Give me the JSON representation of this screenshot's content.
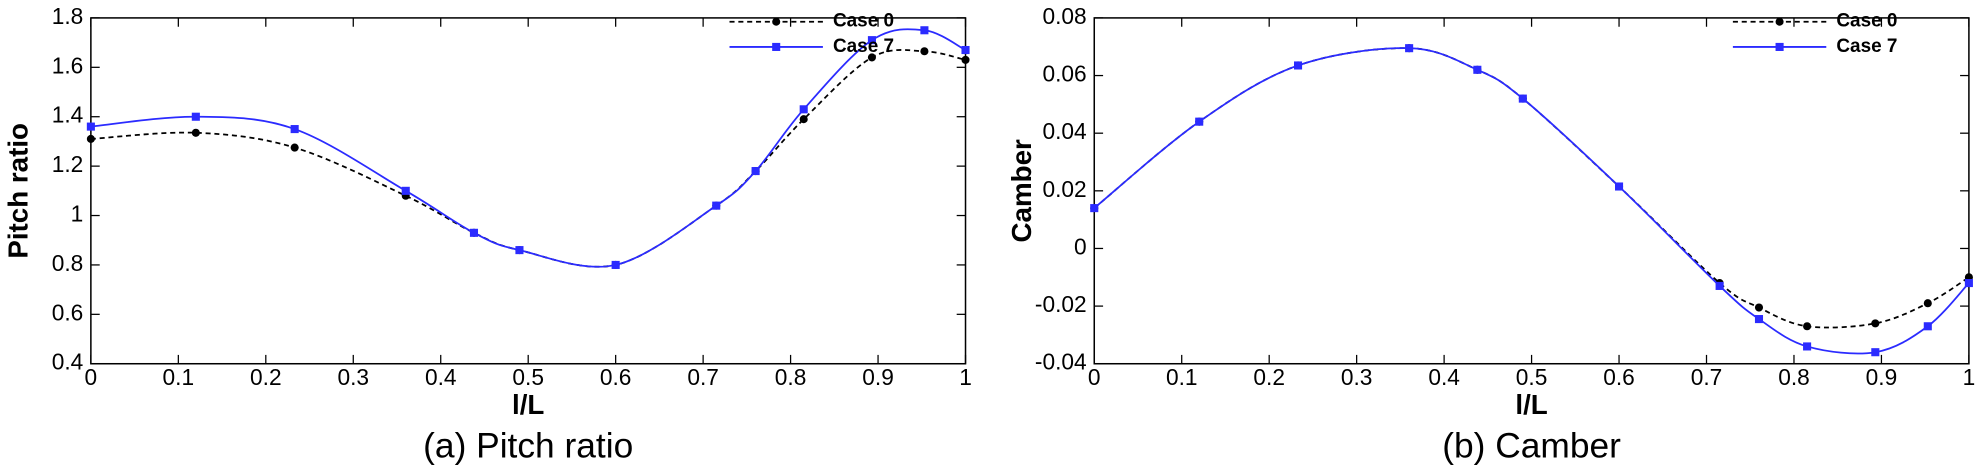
{
  "chart_data": [
    {
      "type": "line",
      "caption": "(a) Pitch ratio",
      "xlabel": "l/L",
      "ylabel": "Pitch ratio",
      "x": [
        0,
        0.12,
        0.233,
        0.36,
        0.438,
        0.49,
        0.6,
        0.715,
        0.76,
        0.815,
        0.893,
        0.953,
        1.0
      ],
      "series": [
        {
          "name": "Case 0",
          "color": "#000000",
          "line_style": "dashed",
          "marker": "circle",
          "values": [
            1.31,
            1.335,
            1.275,
            1.08,
            0.93,
            0.86,
            0.8,
            1.04,
            1.18,
            1.39,
            1.64,
            1.665,
            1.63
          ]
        },
        {
          "name": "Case 7",
          "color": "#2b2bff",
          "line_style": "solid",
          "marker": "square",
          "values": [
            1.36,
            1.4,
            1.35,
            1.1,
            0.93,
            0.86,
            0.8,
            1.04,
            1.18,
            1.43,
            1.71,
            1.75,
            1.67
          ]
        }
      ],
      "xlim": [
        0,
        1
      ],
      "xticks": [
        0,
        0.1,
        0.2,
        0.3,
        0.4,
        0.5,
        0.6,
        0.7,
        0.8,
        0.9,
        1
      ],
      "ylim": [
        0.4,
        1.8
      ],
      "yticks": [
        0.4,
        0.6,
        0.8,
        1,
        1.2,
        1.4,
        1.6,
        1.8
      ],
      "legend": "upper right"
    },
    {
      "type": "line",
      "caption": "(b) Camber",
      "xlabel": "l/L",
      "ylabel": "Camber",
      "x": [
        0,
        0.12,
        0.233,
        0.36,
        0.438,
        0.49,
        0.6,
        0.715,
        0.76,
        0.815,
        0.893,
        0.953,
        1.0
      ],
      "series": [
        {
          "name": "Case 0",
          "color": "#000000",
          "line_style": "dashed",
          "marker": "circle",
          "values": [
            0.014,
            0.044,
            0.0635,
            0.0695,
            0.062,
            0.052,
            0.0215,
            -0.012,
            -0.0205,
            -0.027,
            -0.026,
            -0.019,
            -0.01
          ]
        },
        {
          "name": "Case 7",
          "color": "#2b2bff",
          "line_style": "solid",
          "marker": "square",
          "values": [
            0.014,
            0.044,
            0.0635,
            0.0695,
            0.062,
            0.052,
            0.0215,
            -0.013,
            -0.0245,
            -0.034,
            -0.036,
            -0.027,
            -0.012
          ]
        }
      ],
      "xlim": [
        0,
        1
      ],
      "xticks": [
        0,
        0.1,
        0.2,
        0.3,
        0.4,
        0.5,
        0.6,
        0.7,
        0.8,
        0.9,
        1
      ],
      "ylim": [
        -0.04,
        0.08
      ],
      "yticks": [
        -0.04,
        -0.02,
        0,
        0.02,
        0.04,
        0.06,
        0.08
      ],
      "legend": "upper right"
    }
  ]
}
